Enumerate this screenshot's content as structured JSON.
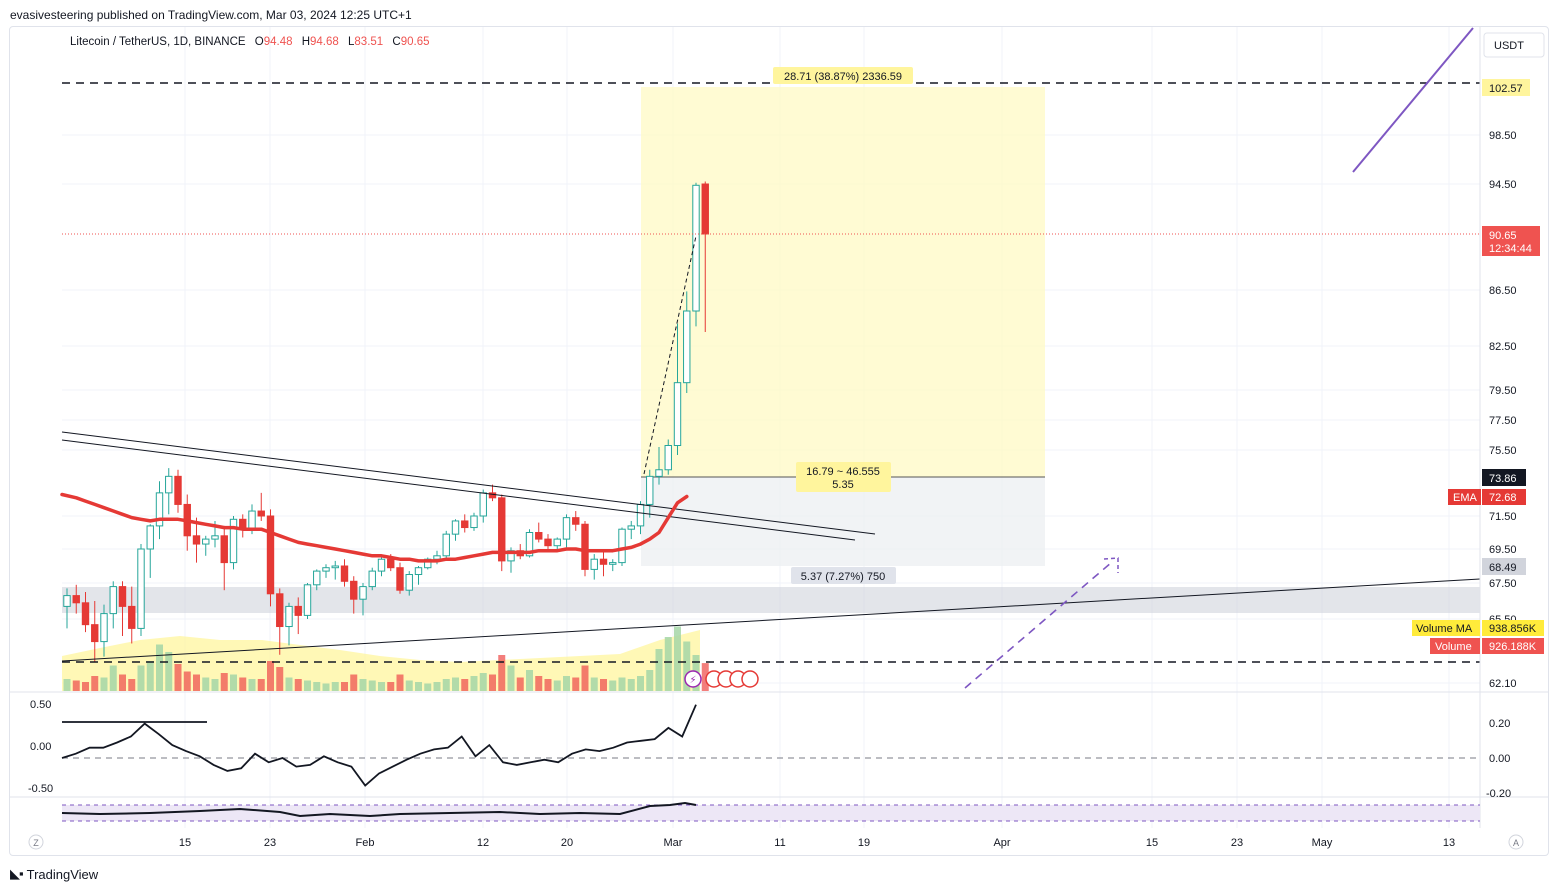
{
  "publisher": "evasivesteering published on TradingView.com, Mar 03, 2024 12:25 UTC+1",
  "brand": "TradingView",
  "symbol_info": {
    "title": "Litecoin / TetherUS, 1D, BINANCE",
    "o_label": "O",
    "o": "94.48",
    "h_label": "H",
    "h": "94.68",
    "l_label": "L",
    "l": "83.51",
    "c_label": "C",
    "c": "90.65"
  },
  "currency": "USDT",
  "scale_badges": {
    "left": "Z",
    "right": "A"
  },
  "colors": {
    "up": "#26a69a",
    "down": "#ef5350",
    "ema": "#e53935",
    "volume_up": "#a5d6a7",
    "volume_down": "#ef9a9a",
    "volume_ma": "#ffeb3b",
    "measure_fill": "#fff9c4",
    "measure_stop": "#eceff1",
    "zone": "#d1d4dc",
    "trendline_purple": "#7e57c2"
  },
  "chart_data": {
    "type": "candlestick",
    "price_ticks": [
      "98.50",
      "94.50",
      "86.50",
      "82.50",
      "79.50",
      "77.50",
      "75.50",
      "71.50",
      "69.50",
      "67.50",
      "65.50",
      "62.10"
    ],
    "time_labels": [
      "15",
      "23",
      "Feb",
      "12",
      "20",
      "Mar",
      "11",
      "19",
      "Apr",
      "15",
      "23",
      "May",
      "13"
    ],
    "badges": {
      "target": "102.57",
      "last_price": "90.65",
      "countdown": "12:34:44",
      "entry": "73.86",
      "ema_label": "EMA",
      "ema_value": "72.68",
      "stop": "68.49",
      "volume_ma_label": "Volume MA",
      "volume_ma_value": "938.856K",
      "volume_label": "Volume",
      "volume_value": "926.188K"
    },
    "measurements": {
      "target_text": "28.71 (38.87%) 2336.59",
      "ratio_text": "16.79 ~ 46.555",
      "ratio_sub": "5.35",
      "stop_text": "5.37 (7.27%) 750"
    },
    "oscillator_ticks_left": [
      "0.50",
      "0.00",
      "-0.50"
    ],
    "oscillator_ticks_right": [
      "0.20",
      "0.00",
      "-0.20"
    ],
    "candles": [
      [
        66.2,
        67.2,
        65.0,
        66.8
      ],
      [
        66.8,
        67.4,
        65.8,
        66.4
      ],
      [
        66.4,
        67.0,
        64.8,
        65.2
      ],
      [
        65.2,
        66.5,
        63.2,
        64.3
      ],
      [
        64.3,
        66.3,
        63.5,
        65.8
      ],
      [
        65.8,
        67.6,
        65.0,
        67.3
      ],
      [
        67.3,
        67.6,
        64.6,
        66.2
      ],
      [
        66.2,
        67.3,
        64.2,
        65.0
      ],
      [
        65.0,
        69.8,
        64.6,
        69.5
      ],
      [
        69.5,
        71.0,
        67.8,
        70.9
      ],
      [
        70.9,
        73.6,
        70.1,
        72.9
      ],
      [
        72.9,
        74.4,
        71.6,
        73.9
      ],
      [
        73.9,
        74.3,
        71.7,
        72.2
      ],
      [
        72.2,
        72.8,
        69.4,
        70.3
      ],
      [
        70.3,
        71.4,
        68.7,
        69.8
      ],
      [
        69.8,
        70.3,
        69.1,
        70.1
      ],
      [
        70.1,
        71.2,
        69.6,
        70.3
      ],
      [
        70.3,
        70.9,
        67.1,
        68.7
      ],
      [
        68.7,
        71.5,
        68.3,
        71.3
      ],
      [
        71.3,
        71.6,
        70.2,
        70.7
      ],
      [
        70.7,
        72.2,
        70.4,
        71.8
      ],
      [
        71.8,
        72.9,
        71.2,
        71.5
      ],
      [
        71.5,
        71.9,
        66.2,
        66.9
      ],
      [
        66.9,
        67.2,
        63.6,
        65.1
      ],
      [
        65.1,
        66.4,
        64.1,
        66.2
      ],
      [
        66.2,
        66.7,
        64.7,
        65.7
      ],
      [
        65.7,
        67.5,
        65.5,
        67.4
      ],
      [
        67.4,
        68.3,
        67.1,
        68.2
      ],
      [
        68.2,
        68.6,
        67.8,
        68.4
      ],
      [
        68.4,
        68.8,
        67.7,
        68.5
      ],
      [
        68.5,
        68.9,
        67.3,
        67.6
      ],
      [
        67.6,
        67.9,
        65.8,
        66.6
      ],
      [
        66.6,
        67.5,
        65.7,
        67.3
      ],
      [
        67.3,
        68.4,
        67.1,
        68.2
      ],
      [
        68.2,
        69.1,
        67.9,
        68.9
      ],
      [
        68.9,
        69.2,
        68.2,
        68.4
      ],
      [
        68.4,
        68.7,
        66.9,
        67.1
      ],
      [
        67.1,
        68.2,
        66.8,
        68.0
      ],
      [
        68.0,
        68.5,
        67.4,
        68.4
      ],
      [
        68.4,
        69.0,
        68.3,
        68.9
      ],
      [
        68.9,
        69.4,
        68.6,
        69.1
      ],
      [
        69.1,
        70.6,
        69.0,
        70.4
      ],
      [
        70.4,
        71.3,
        70.0,
        71.2
      ],
      [
        71.2,
        71.6,
        70.5,
        70.8
      ],
      [
        70.8,
        71.7,
        70.6,
        71.5
      ],
      [
        71.5,
        73.1,
        71.1,
        72.9
      ],
      [
        72.9,
        73.4,
        72.4,
        72.6
      ],
      [
        72.6,
        72.8,
        68.2,
        68.8
      ],
      [
        68.8,
        69.6,
        68.1,
        69.4
      ],
      [
        69.4,
        69.8,
        68.9,
        69.1
      ],
      [
        69.1,
        70.7,
        69.0,
        70.5
      ],
      [
        70.5,
        71.1,
        69.9,
        70.1
      ],
      [
        70.1,
        70.4,
        69.3,
        69.7
      ],
      [
        69.7,
        70.2,
        69.4,
        70.1
      ],
      [
        70.1,
        71.6,
        69.6,
        71.4
      ],
      [
        71.4,
        71.8,
        70.6,
        71.0
      ],
      [
        71.0,
        71.2,
        67.9,
        68.3
      ],
      [
        68.3,
        69.2,
        67.7,
        68.9
      ],
      [
        68.9,
        69.4,
        67.9,
        68.6
      ],
      [
        68.6,
        68.9,
        68.2,
        68.7
      ],
      [
        68.7,
        70.8,
        68.5,
        70.7
      ],
      [
        70.7,
        71.2,
        70.1,
        70.9
      ],
      [
        70.9,
        72.4,
        70.4,
        72.2
      ],
      [
        72.2,
        74.3,
        71.4,
        73.9
      ],
      [
        73.9,
        75.7,
        73.4,
        74.3
      ],
      [
        74.3,
        76.2,
        74.0,
        75.8
      ],
      [
        75.8,
        84.1,
        75.2,
        80.0
      ],
      [
        80.0,
        86.4,
        79.3,
        85.0
      ],
      [
        85.0,
        94.6,
        83.9,
        94.4
      ],
      [
        94.5,
        94.7,
        83.5,
        90.65
      ]
    ],
    "ema": [
      72.8,
      72.6,
      72.4,
      72.2,
      72.0,
      71.8,
      71.6,
      71.4,
      71.3,
      71.2,
      71.3,
      71.3,
      71.3,
      71.2,
      71.1,
      71.0,
      70.9,
      70.8,
      70.8,
      70.7,
      70.7,
      70.7,
      70.5,
      70.3,
      70.1,
      69.9,
      69.8,
      69.7,
      69.6,
      69.5,
      69.4,
      69.3,
      69.2,
      69.1,
      69.1,
      69.0,
      68.9,
      68.9,
      68.8,
      68.8,
      68.8,
      68.9,
      68.9,
      69.0,
      69.1,
      69.2,
      69.3,
      69.3,
      69.3,
      69.3,
      69.3,
      69.4,
      69.4,
      69.4,
      69.5,
      69.5,
      69.4,
      69.4,
      69.4,
      69.4,
      69.5,
      69.6,
      69.8,
      70.1,
      70.5,
      71.4,
      72.3,
      72.68
    ],
    "volumes": [
      0.4,
      0.35,
      0.3,
      0.5,
      0.45,
      0.85,
      0.55,
      0.4,
      0.85,
      1.0,
      1.55,
      1.3,
      0.9,
      0.65,
      0.55,
      0.45,
      0.4,
      0.6,
      0.55,
      0.45,
      0.4,
      0.4,
      1.0,
      0.8,
      0.45,
      0.4,
      0.35,
      0.3,
      0.25,
      0.3,
      0.3,
      0.55,
      0.4,
      0.35,
      0.3,
      0.3,
      0.55,
      0.35,
      0.3,
      0.25,
      0.3,
      0.4,
      0.45,
      0.4,
      0.5,
      0.6,
      0.55,
      1.2,
      0.85,
      0.45,
      0.7,
      0.5,
      0.4,
      0.35,
      0.5,
      0.45,
      0.85,
      0.45,
      0.4,
      0.35,
      0.45,
      0.4,
      0.5,
      0.7,
      1.4,
      1.8,
      2.15,
      1.65,
      1.2,
      0.93
    ],
    "oscillator": [
      0.0,
      0.05,
      0.12,
      0.12,
      0.18,
      0.25,
      0.4,
      0.28,
      0.15,
      0.08,
      0.02,
      -0.08,
      -0.15,
      -0.12,
      0.05,
      -0.05,
      0.0,
      -0.1,
      -0.08,
      0.02,
      -0.05,
      -0.1,
      -0.32,
      -0.18,
      -0.1,
      -0.02,
      0.05,
      0.1,
      0.12,
      0.25,
      0.02,
      0.15,
      -0.05,
      -0.08,
      -0.05,
      -0.02,
      -0.05,
      0.05,
      0.1,
      0.08,
      0.12,
      0.18,
      0.2,
      0.22,
      0.35,
      0.25,
      0.62
    ]
  }
}
